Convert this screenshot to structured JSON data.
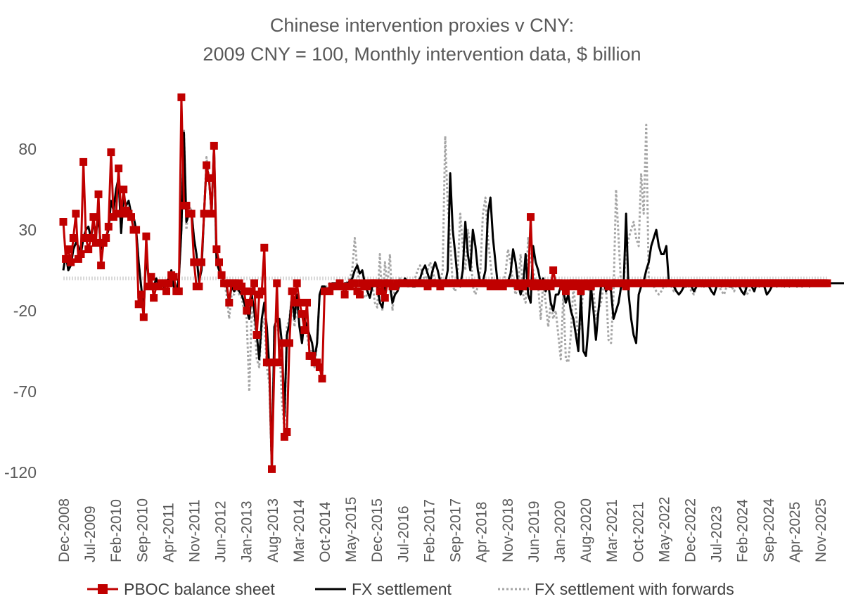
{
  "chart_data": {
    "type": "line",
    "title": "Chinese intervention proxies v CNY:",
    "subtitle": "2009 CNY = 100, Monthly intervention data, $ billion",
    "xlabel": "",
    "ylabel": "",
    "ylim": [
      -120,
      120
    ],
    "yticks": [
      80,
      30,
      -20,
      -70,
      -120
    ],
    "xtick_labels": [
      "Dec-2008",
      "Jul-2009",
      "Feb-2010",
      "Sep-2010",
      "Apr-2011",
      "Nov-2011",
      "Jun-2012",
      "Jan-2013",
      "Aug-2013",
      "Mar-2014",
      "Oct-2014",
      "May-2015",
      "Dec-2015",
      "Jul-2016",
      "Feb-2017",
      "Sep-2017",
      "Apr-2018",
      "Nov-2018",
      "Jun-2019",
      "Jan-2020",
      "Aug-2020",
      "Mar-2021",
      "Oct-2021",
      "May-2022",
      "Dec-2022",
      "Jul-2023",
      "Feb-2024",
      "Sep-2024",
      "Apr-2025",
      "Nov-2025"
    ],
    "legend_position": "bottom",
    "colors": {
      "pboc": "#c00000",
      "fx": "#000000",
      "fwd": "#a6a6a6",
      "zero": "#d9d9d9"
    },
    "series": [
      {
        "name": "PBOC balance sheet",
        "style": "line-square-markers",
        "start": "Dec-2008",
        "values": [
          35,
          12,
          18,
          10,
          25,
          40,
          12,
          15,
          72,
          25,
          18,
          25,
          38,
          22,
          52,
          8,
          22,
          25,
          32,
          78,
          38,
          40,
          68,
          40,
          55,
          42,
          40,
          38,
          30,
          30,
          -16,
          -10,
          -24,
          26,
          -5,
          1,
          -12,
          -5,
          -5,
          -3,
          -3,
          -8,
          -3,
          2,
          1,
          -8,
          -8,
          112,
          45,
          45,
          40,
          40,
          10,
          -5,
          -5,
          10,
          40,
          70,
          62,
          40,
          82,
          18,
          10,
          2,
          -3,
          -3,
          -15,
          -3,
          -3,
          -5,
          -3,
          -5,
          -8,
          -20,
          -15,
          -8,
          -3,
          -35,
          -10,
          -8,
          19,
          -52,
          -52,
          -118,
          -52,
          -3,
          -52,
          -40,
          -98,
          -95,
          -40,
          -8,
          -15,
          -3,
          -15,
          -22,
          -32,
          -15,
          -48,
          -48,
          -52,
          -52,
          -55,
          -62,
          -8,
          -8,
          -8,
          -5,
          -5,
          -5,
          -3,
          -5,
          -10,
          -5,
          -5,
          -3,
          -3,
          -8,
          -10,
          -3,
          -5,
          -5,
          -3,
          -3,
          -3,
          -3,
          -8,
          -3,
          -12,
          -3,
          -3,
          -5,
          -5,
          -3,
          -3,
          -3,
          -3,
          -3,
          -3,
          -3,
          -3,
          -3,
          -3,
          -3,
          -3,
          -5,
          -3,
          -3,
          -3,
          -3,
          -5,
          -3,
          -3,
          -3,
          -3,
          -3,
          -3,
          -3,
          -3,
          -3,
          -3,
          -3,
          -3,
          -3,
          -3,
          -3,
          -3,
          -3,
          -3,
          -3,
          -5,
          -3,
          -3,
          -5,
          -3,
          -5,
          -3,
          -3,
          -3,
          -3,
          -3,
          -5,
          -3,
          -5,
          -3,
          -3,
          38,
          -5,
          -3,
          -3,
          -5,
          -5,
          -3,
          -3,
          -5,
          5,
          -3,
          -3,
          -3,
          -5,
          -8,
          -3,
          -5,
          -3,
          -3,
          -5,
          -8,
          -3,
          -5,
          -3,
          -5,
          -3,
          -3,
          -3,
          -3,
          -3,
          -3,
          -5,
          -3,
          -3,
          -3,
          -3,
          -3,
          -3,
          -5,
          -3,
          -3,
          -3,
          -3,
          -3,
          -3,
          -3,
          -3,
          -3,
          -3,
          -3,
          -3,
          -3,
          -3,
          -3,
          -3,
          -3,
          -3,
          -3,
          -3,
          -3,
          -3,
          -3,
          -3,
          -3,
          -3,
          -3,
          -3,
          -3,
          -3,
          -3,
          -3,
          -3,
          -3,
          -3,
          -3,
          -3,
          -3,
          -3,
          -3,
          -3,
          -3,
          -3,
          -3,
          -3,
          -3,
          -3,
          -3,
          -3,
          -3,
          -3,
          -3,
          -3,
          -3,
          -3,
          -3,
          -3,
          -3,
          -3,
          -3,
          -3,
          -3,
          -3,
          -3,
          -3,
          -3,
          -3,
          -3,
          -3,
          -3,
          -3,
          -3,
          -3,
          -3,
          -3,
          -3,
          -3,
          -3,
          -3,
          -3
        ]
      },
      {
        "name": "FX settlement",
        "style": "line-solid",
        "start": "Dec-2008",
        "values": [
          5,
          15,
          5,
          8,
          18,
          22,
          20,
          15,
          25,
          30,
          32,
          25,
          35,
          28,
          38,
          18,
          25,
          25,
          30,
          48,
          42,
          55,
          62,
          28,
          50,
          45,
          48,
          40,
          38,
          30,
          10,
          -5,
          -20,
          15,
          0,
          -2,
          -5,
          0,
          -5,
          -2,
          -5,
          -2,
          0,
          5,
          -5,
          -8,
          0,
          30,
          90,
          35,
          40,
          42,
          25,
          15,
          -2,
          5,
          40,
          70,
          62,
          40,
          82,
          10,
          5,
          3,
          -2,
          -5,
          -15,
          -5,
          -8,
          -5,
          -8,
          -10,
          -15,
          -20,
          -25,
          -10,
          -20,
          -35,
          -50,
          -25,
          -15,
          -30,
          -55,
          -118,
          -30,
          -25,
          -25,
          -40,
          -85,
          -35,
          -28,
          -10,
          -25,
          -10,
          -30,
          -40,
          -25,
          -30,
          -35,
          -40,
          -50,
          -40,
          -10,
          -5,
          -5,
          -8,
          -5,
          -3,
          -3,
          -3,
          -5,
          -5,
          -3,
          -3,
          -2,
          0,
          5,
          8,
          3,
          5,
          -3,
          -8,
          -12,
          -5,
          -3,
          -5,
          -15,
          -18,
          -5,
          -3,
          -5,
          -15,
          -10,
          -8,
          -3,
          -3,
          0,
          -2,
          -3,
          -5,
          -5,
          -2,
          0,
          5,
          8,
          3,
          -2,
          5,
          10,
          5,
          -2,
          -5,
          -3,
          5,
          65,
          30,
          15,
          -2,
          -5,
          5,
          35,
          15,
          5,
          30,
          20,
          5,
          -3,
          -2,
          5,
          40,
          50,
          25,
          10,
          -5,
          -3,
          -3,
          -5,
          -2,
          3,
          18,
          10,
          -3,
          -10,
          -5,
          15,
          -10,
          -15,
          20,
          10,
          5,
          -3,
          0,
          -8,
          -3,
          -15,
          -20,
          -10,
          -10,
          -5,
          -8,
          -15,
          -10,
          -20,
          -25,
          -35,
          -45,
          -10,
          -45,
          -48,
          -30,
          -5,
          -20,
          -38,
          -20,
          -5,
          -2,
          -8,
          -5,
          -8,
          -25,
          -20,
          -15,
          -5,
          -5,
          40,
          -10,
          -25,
          -35,
          -40,
          -10,
          -5,
          -2,
          5,
          10,
          20,
          25,
          30,
          20,
          15,
          15,
          20,
          -2,
          -3,
          -5,
          -8,
          -10,
          -8,
          -5,
          -5,
          -3,
          -5,
          -8,
          -5,
          -3,
          -3,
          -5,
          -3,
          -5,
          -8,
          -10,
          -5,
          -3,
          -5,
          -2,
          -3,
          -5,
          -5,
          -3,
          -3,
          -5,
          -8,
          -10,
          -5,
          -3,
          -5,
          -8,
          -3,
          -5,
          -3,
          -5,
          -10,
          -8,
          -5,
          -3,
          -5,
          -3,
          -3,
          -5,
          -3,
          -5,
          -3,
          -3,
          -5,
          -3,
          -5,
          -3,
          -3,
          -5,
          -3,
          -3,
          -3,
          -3,
          -3,
          -3,
          -3,
          -3,
          -3,
          -3,
          -3,
          -3,
          -3,
          -3,
          -3
        ]
      },
      {
        "name": "FX settlement with forwards",
        "style": "line-dotted",
        "start": "Dec-2008",
        "values": [
          5,
          15,
          5,
          8,
          18,
          22,
          20,
          15,
          25,
          30,
          32,
          25,
          35,
          28,
          38,
          18,
          25,
          25,
          30,
          48,
          42,
          55,
          62,
          28,
          50,
          45,
          48,
          40,
          38,
          30,
          10,
          -5,
          -20,
          15,
          0,
          -2,
          -5,
          0,
          -5,
          -2,
          -5,
          -2,
          0,
          5,
          -5,
          -8,
          0,
          30,
          92,
          30,
          45,
          42,
          25,
          15,
          -2,
          5,
          40,
          75,
          62,
          40,
          80,
          10,
          5,
          3,
          -2,
          -10,
          -25,
          -10,
          -10,
          -5,
          -10,
          -12,
          -20,
          -25,
          -70,
          -20,
          -25,
          -50,
          -55,
          -30,
          -25,
          -55,
          -65,
          -118,
          -30,
          -25,
          -40,
          -75,
          -95,
          -30,
          -25,
          -10,
          -30,
          -15,
          -30,
          -40,
          -25,
          -35,
          -45,
          -45,
          -55,
          -40,
          -10,
          -8,
          -5,
          -5,
          -3,
          -5,
          -5,
          -3,
          -3,
          -3,
          -5,
          -2,
          0,
          5,
          25,
          5,
          -3,
          -8,
          -12,
          -10,
          -5,
          -3,
          -15,
          -18,
          15,
          -20,
          10,
          -5,
          15,
          -20,
          -3,
          -3,
          0,
          -2,
          -3,
          -5,
          -5,
          -2,
          0,
          5,
          8,
          3,
          -2,
          5,
          10,
          5,
          -2,
          -5,
          -3,
          5,
          88,
          45,
          25,
          -5,
          -8,
          5,
          40,
          20,
          5,
          30,
          20,
          -5,
          -10,
          -5,
          5,
          40,
          50,
          25,
          10,
          -5,
          -3,
          -3,
          -5,
          -2,
          3,
          18,
          10,
          -3,
          -10,
          -5,
          15,
          -10,
          -15,
          25,
          10,
          5,
          -3,
          -5,
          -25,
          -3,
          -15,
          -30,
          -15,
          -25,
          -20,
          -35,
          -50,
          -10,
          -50,
          -52,
          -35,
          -5,
          -20,
          -38,
          -25,
          -5,
          -2,
          -8,
          -5,
          -8,
          -25,
          -20,
          -15,
          -5,
          -5,
          -38,
          -40,
          -10,
          55,
          25,
          -5,
          -2,
          15,
          25,
          30,
          35,
          25,
          20,
          65,
          40,
          95,
          -2,
          -3,
          -5,
          -8,
          -10,
          -8,
          -5,
          -5,
          -3,
          -5,
          -8,
          -5,
          -3,
          -3,
          -5,
          -3,
          -5,
          -8,
          -10,
          -5,
          -3,
          -5,
          -2,
          -3,
          -5,
          -5,
          -3,
          -3,
          -5,
          -8,
          -10,
          -5,
          -3,
          -5,
          -8,
          -3,
          -5,
          -3,
          -5,
          -10,
          -8,
          -5,
          -3,
          -5,
          -3,
          -3,
          -5,
          -3,
          -5,
          -3,
          -3,
          -5,
          -3,
          -5,
          -3,
          -3,
          -5,
          -3,
          -3,
          -3,
          -3,
          -3,
          -3,
          -3,
          -3,
          -3,
          -3,
          -3,
          -3,
          -3,
          -3,
          -3
        ]
      }
    ]
  }
}
